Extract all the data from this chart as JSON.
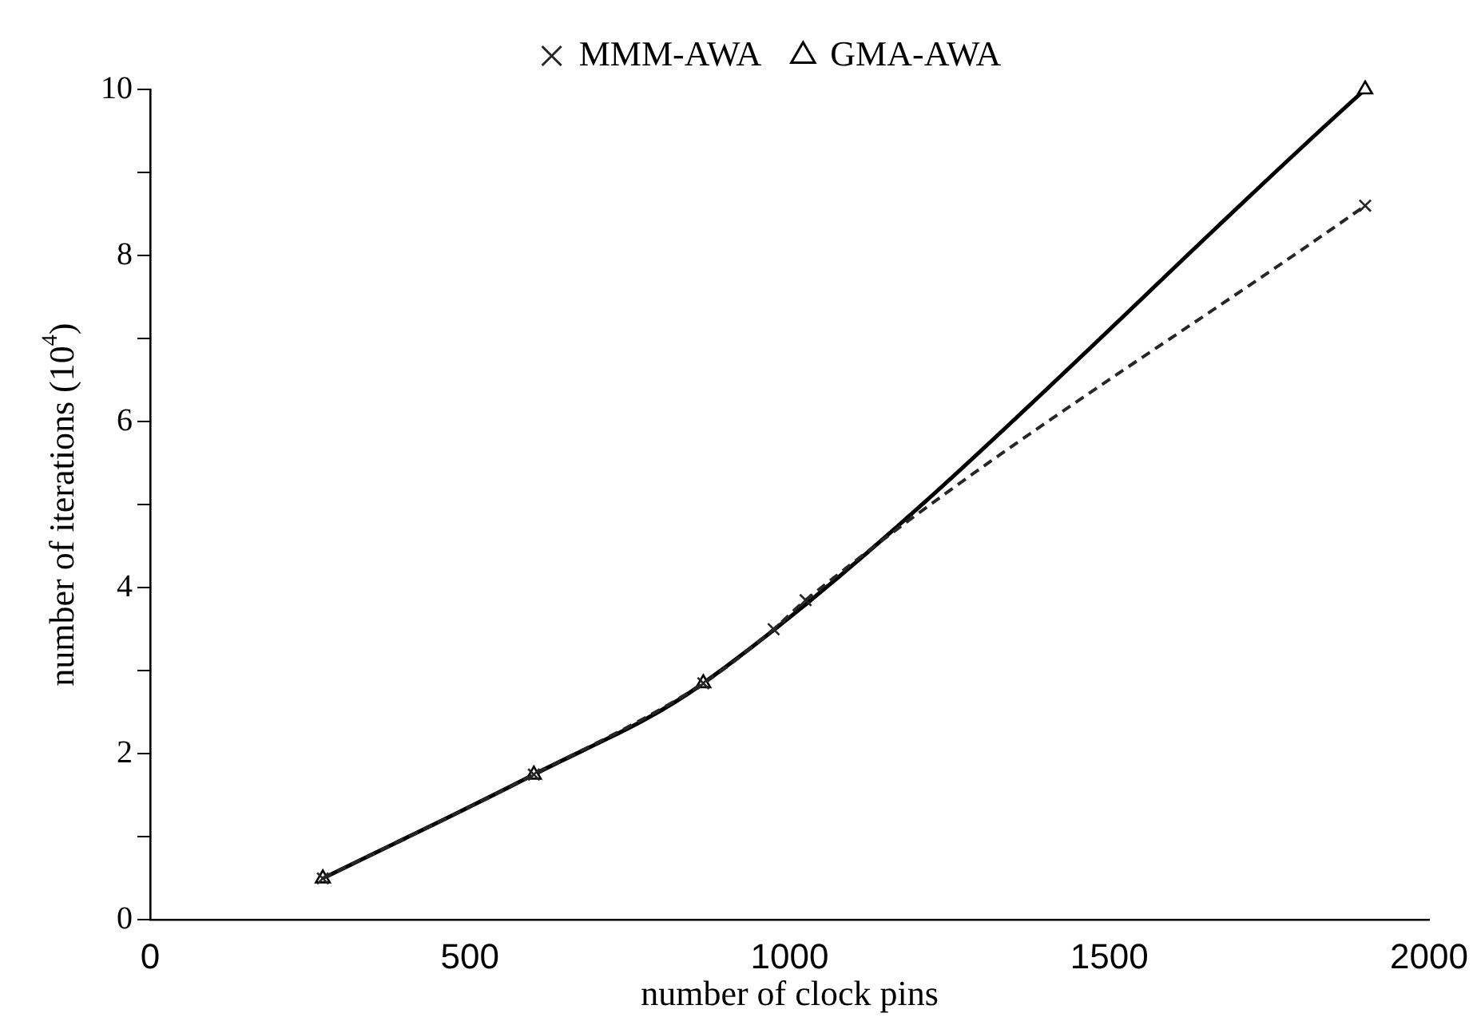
{
  "chart_data": {
    "type": "line",
    "xlabel": "number of clock pins",
    "ylabel": "number of iterations (10$^{4}$)",
    "xlim": [
      0,
      2000
    ],
    "xticks": [
      0,
      500,
      1000,
      1500,
      2000
    ],
    "ylim": [
      0,
      10
    ],
    "yticks": [
      0,
      {
        "value": 1,
        "label": null
      },
      2,
      {
        "value": 3,
        "label": null
      },
      4,
      {
        "value": 5,
        "label": null
      },
      6,
      {
        "value": 7,
        "label": null
      },
      8,
      {
        "value": 9,
        "label": null
      },
      10
    ],
    "grid": false,
    "legend": "top",
    "series": [
      {
        "name": "MMM-AWA",
        "color": "#262626",
        "marker": "cross",
        "line_style": "dashed",
        "x": [
          270,
          600,
          865,
          975,
          1025,
          1900
        ],
        "values": [
          0.5,
          1.75,
          2.85,
          3.5,
          3.85,
          8.6
        ]
      },
      {
        "name": "GMA-AWA",
        "color": "#000000",
        "marker": "triangle",
        "line_style": "solid",
        "x": [
          270,
          600,
          865,
          1900
        ],
        "values": [
          0.5,
          1.75,
          2.85,
          10.0
        ]
      }
    ]
  }
}
